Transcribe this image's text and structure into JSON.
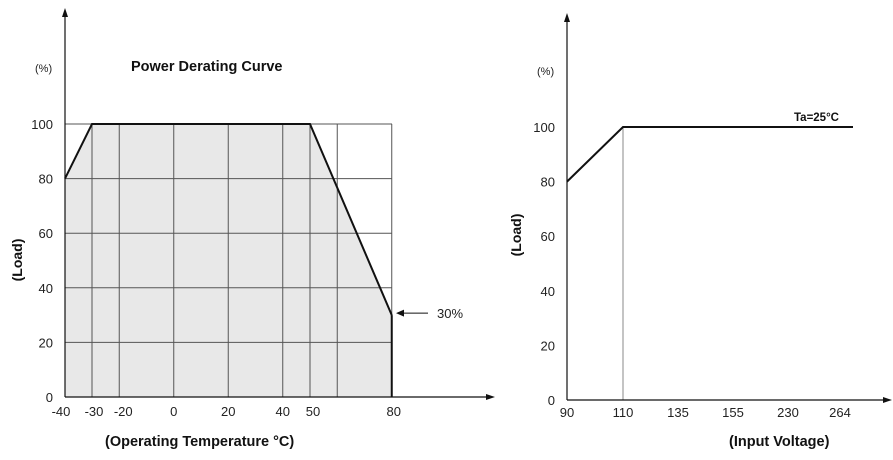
{
  "chart_data": [
    {
      "type": "area",
      "title": "Power Derating Curve",
      "xlabel": "(Operating Temperature °C)",
      "ylabel": "(Load)",
      "yunit": "(%)",
      "x": [
        -40,
        -30,
        50,
        80
      ],
      "y": [
        80,
        100,
        100,
        30
      ],
      "xticks": [
        "-40",
        "-30",
        "-20",
        "0",
        "20",
        "40",
        "50",
        "80"
      ],
      "xtick_values": [
        -40,
        -30,
        -20,
        0,
        20,
        40,
        50,
        80
      ],
      "grid_x": [
        -30,
        -20,
        0,
        20,
        40,
        50,
        60,
        80
      ],
      "yticks": [
        0,
        20,
        40,
        60,
        80,
        100
      ],
      "ylim": [
        0,
        100
      ],
      "annotation": "30%",
      "annotation_point": [
        80,
        30
      ],
      "grid": true
    },
    {
      "type": "line",
      "xlabel": "(Input Voltage)",
      "ylabel": "(Load)",
      "yunit": "(%)",
      "categories": [
        "90",
        "110",
        "135",
        "155",
        "230",
        "264"
      ],
      "points": [
        [
          "90",
          80
        ],
        [
          "110",
          100
        ],
        [
          "264",
          100
        ]
      ],
      "yticks": [
        0,
        20,
        40,
        60,
        80,
        100
      ],
      "ylim": [
        0,
        100
      ],
      "label": "Ta=25°C",
      "grid": false
    }
  ],
  "colors": {
    "line": "#111111",
    "fill": "#e8e8e8",
    "grid": "#555555",
    "guide": "#888888"
  }
}
